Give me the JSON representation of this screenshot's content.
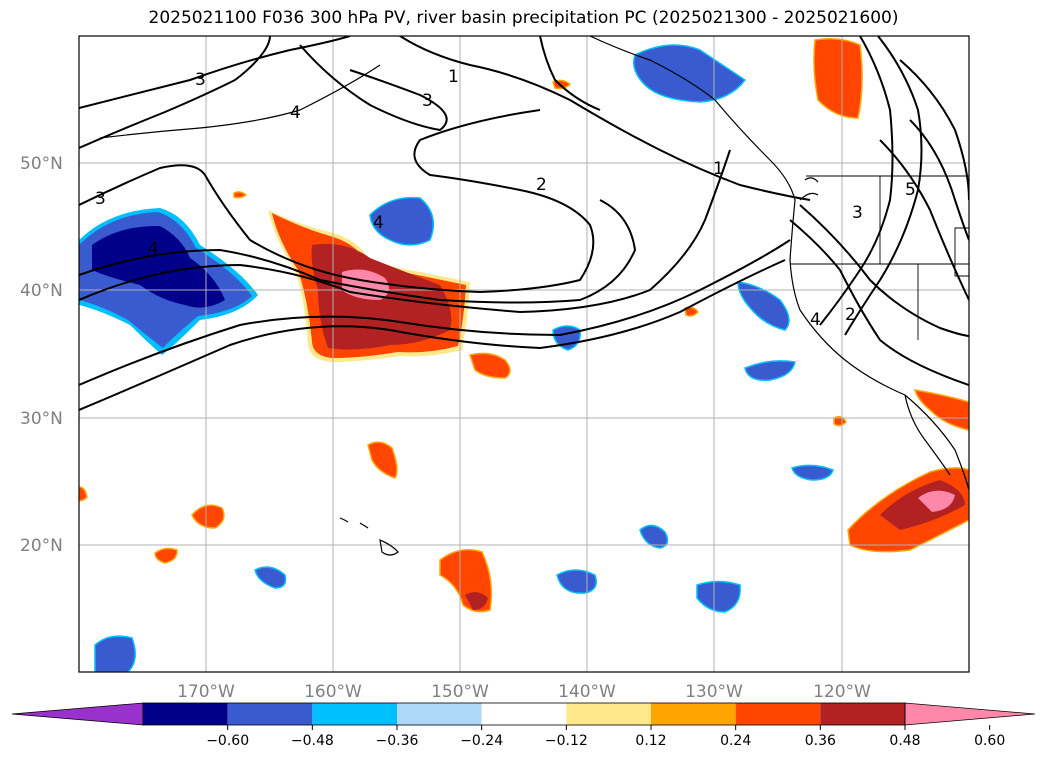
{
  "title": "2025021100 F036 300 hPa PV, river basin precipitation PC (2025021300 - 2025021600)",
  "map": {
    "lat_labels": [
      "50°N",
      "40°N",
      "30°N",
      "20°N"
    ],
    "lon_labels": [
      "170°W",
      "160°W",
      "150°W",
      "140°W",
      "130°W",
      "120°W"
    ],
    "lat_range": [
      10,
      60
    ],
    "lon_range": [
      -180,
      -110
    ],
    "grid": true
  },
  "pv_contour_labels": [
    "3",
    "4",
    "1",
    "3",
    "2",
    "1",
    "3",
    "4",
    "3",
    "4",
    "4",
    "2",
    "5"
  ],
  "colorbar": {
    "ticks": [
      "−0.60",
      "−0.48",
      "−0.36",
      "−0.24",
      "−0.12",
      "0.12",
      "0.24",
      "0.36",
      "0.48",
      "0.60"
    ],
    "colors": [
      "#9932CC",
      "#00008B",
      "#3A5BCF",
      "#00BFFF",
      "#ADD8F6",
      "#FFFFFF",
      "#FFE88C",
      "#FFA500",
      "#FF4500",
      "#B22222",
      "#FF88AA"
    ],
    "extend": "both"
  },
  "legend_colors": {
    "negative_strong": "#00008B",
    "negative_mid": "#3A5BCF",
    "negative_light": "#00BFFF",
    "positive_light": "#FFE88C",
    "positive_mid": "#FF4500",
    "positive_strong": "#B22222",
    "positive_max": "#FF88AA"
  }
}
